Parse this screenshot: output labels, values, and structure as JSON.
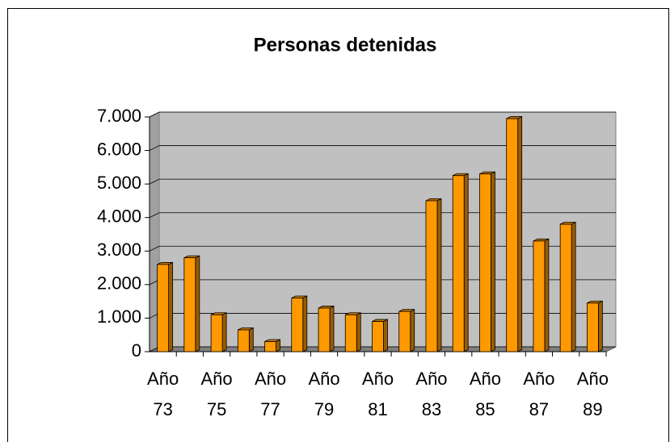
{
  "chart_data": {
    "type": "bar",
    "title": "Personas detenidas",
    "categories": [
      "Año 73",
      null,
      "Año 75",
      null,
      "Año 77",
      null,
      "Año 79",
      null,
      "Año 81",
      null,
      "Año 83",
      null,
      "Año 85",
      null,
      "Año 87",
      null,
      "Año 89"
    ],
    "values": [
      2600,
      2800,
      1100,
      650,
      300,
      1600,
      1300,
      1100,
      900,
      1200,
      4500,
      5250,
      5300,
      6950,
      3300,
      3800,
      1450
    ],
    "color": "#ff9900",
    "ylim": [
      0,
      7000
    ],
    "yticks": [
      0,
      {
        "value": 1000,
        "label": "1.000"
      },
      {
        "value": 2000,
        "label": "2.000"
      },
      {
        "value": 3000,
        "label": "3.000"
      },
      {
        "value": 4000,
        "label": "4.000"
      },
      {
        "value": 5000,
        "label": "5.000"
      },
      {
        "value": 6000,
        "label": "6.000"
      },
      {
        "value": 7000,
        "label": "7.000"
      }
    ],
    "grid": true
  }
}
